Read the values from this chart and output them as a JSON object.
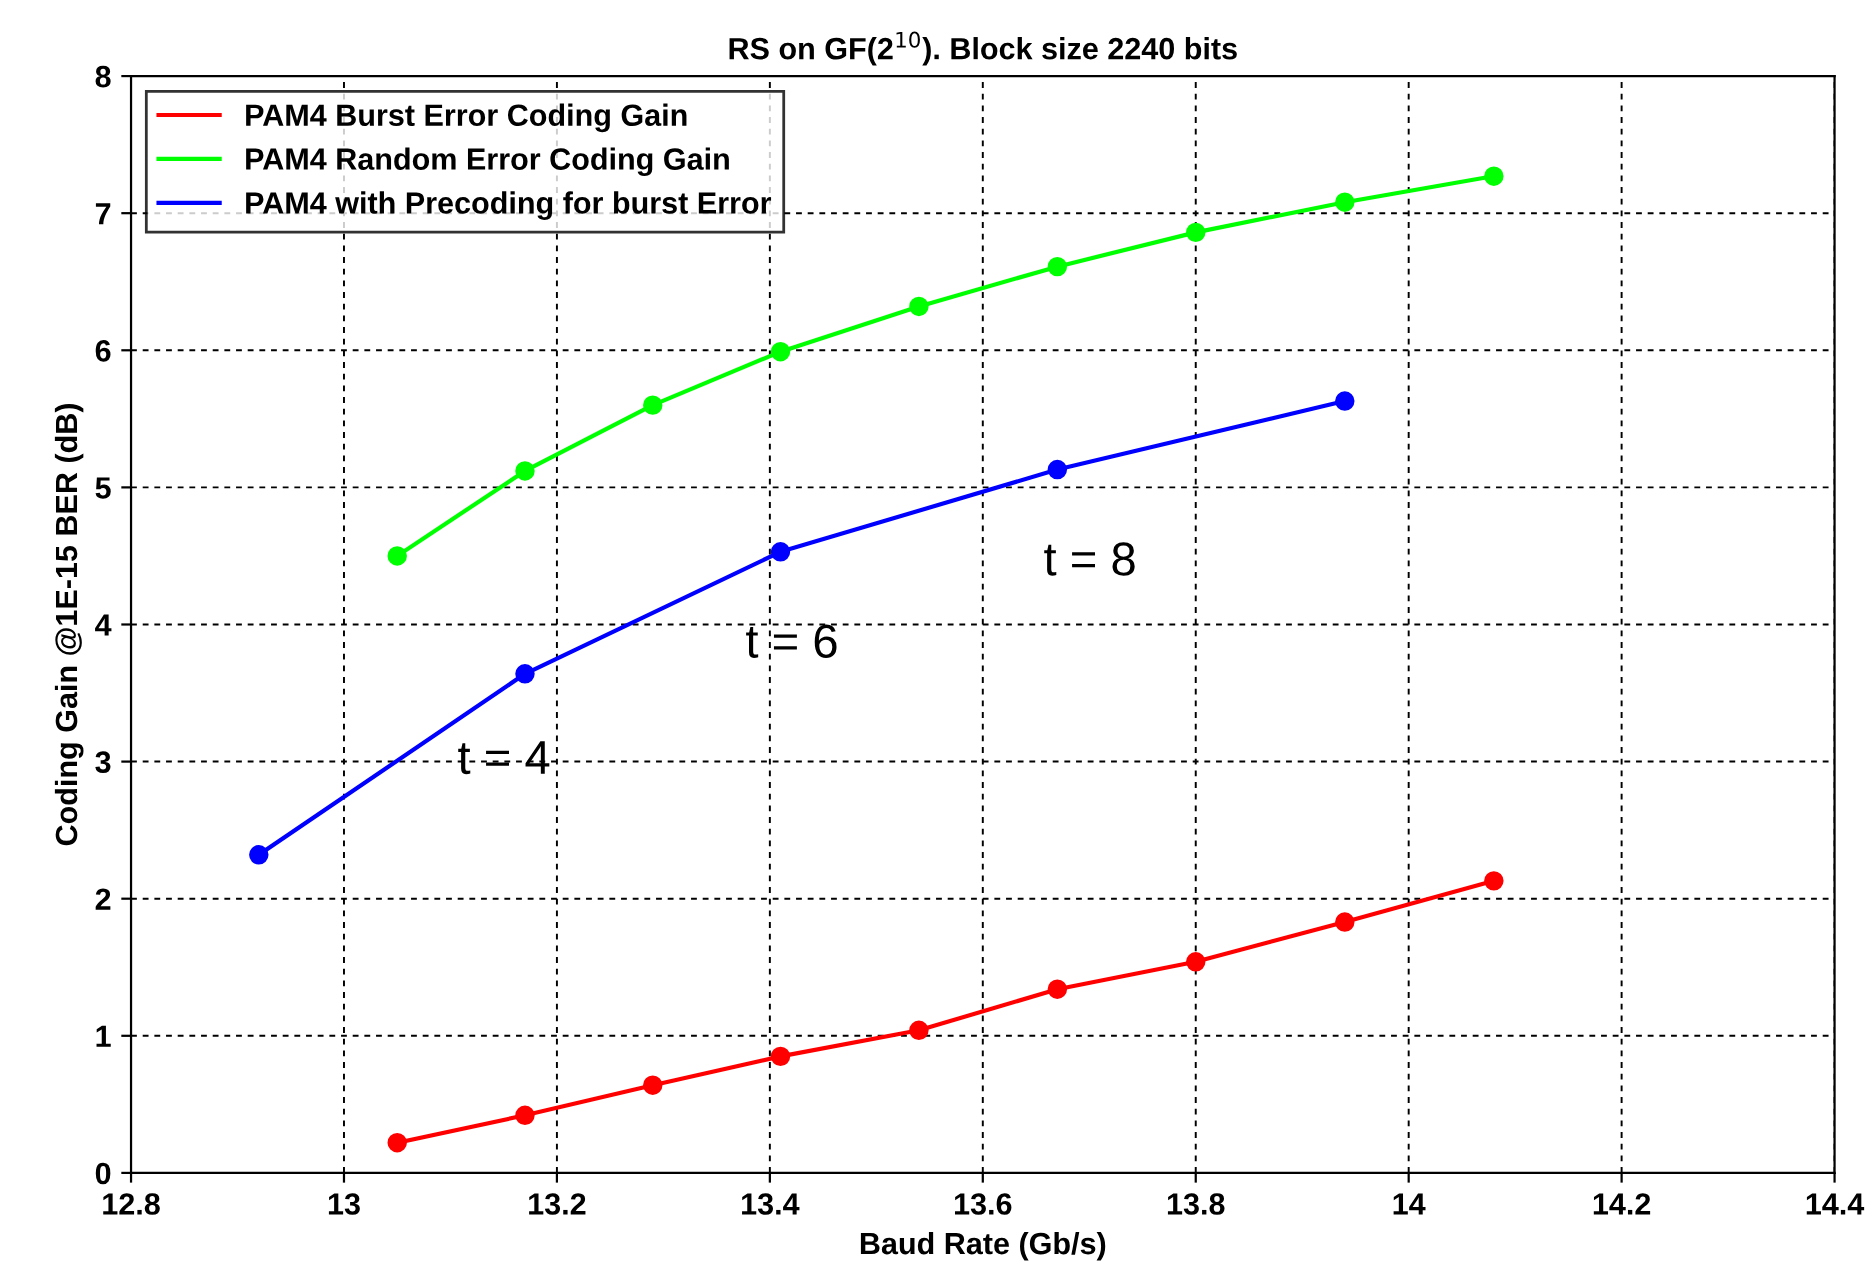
{
  "chart_data": {
    "type": "line",
    "title": "RS on GF(2$^{10}$). Block size 2240 bits",
    "xlabel": "Baud Rate (Gb/s)",
    "ylabel": "Coding Gain @1E-15 BER (dB)",
    "series": [
      {
        "name": "PAM4 Burst Error Coding Gain",
        "color": "#ff0000",
        "x": [
          13.05,
          13.17,
          13.29,
          13.41,
          13.54,
          13.67,
          13.8,
          13.94,
          14.08
        ],
        "values": [
          0.22,
          0.42,
          0.64,
          0.85,
          1.04,
          1.34,
          1.54,
          1.83,
          2.13
        ]
      },
      {
        "name": "PAM4 Random Error Coding Gain",
        "color": "#00ff00",
        "x": [
          13.05,
          13.17,
          13.29,
          13.41,
          13.54,
          13.67,
          13.8,
          13.94,
          14.08
        ],
        "values": [
          4.5,
          5.12,
          5.6,
          5.99,
          6.32,
          6.61,
          6.86,
          7.08,
          7.27
        ]
      },
      {
        "name": "PAM4 with Precoding for burst Error",
        "color": "#0000ff",
        "x": [
          12.92,
          13.17,
          13.41,
          13.67,
          13.94
        ],
        "values": [
          2.32,
          3.64,
          4.53,
          5.13,
          5.63
        ]
      }
    ],
    "annotations": [
      "t = 4",
      "t = 6",
      "t = 8"
    ],
    "xlim": [
      12.8,
      14.4
    ],
    "xticks": [
      12.8,
      13,
      13.2,
      13.4,
      13.6,
      13.8,
      14,
      14.2,
      14.4
    ],
    "ylim": [
      0,
      8
    ],
    "yticks": [
      0,
      1,
      2,
      3,
      4,
      5,
      6,
      7,
      8
    ],
    "grid": true,
    "legend": "top left",
    "marker": "circle",
    "line_style": "solid"
  }
}
